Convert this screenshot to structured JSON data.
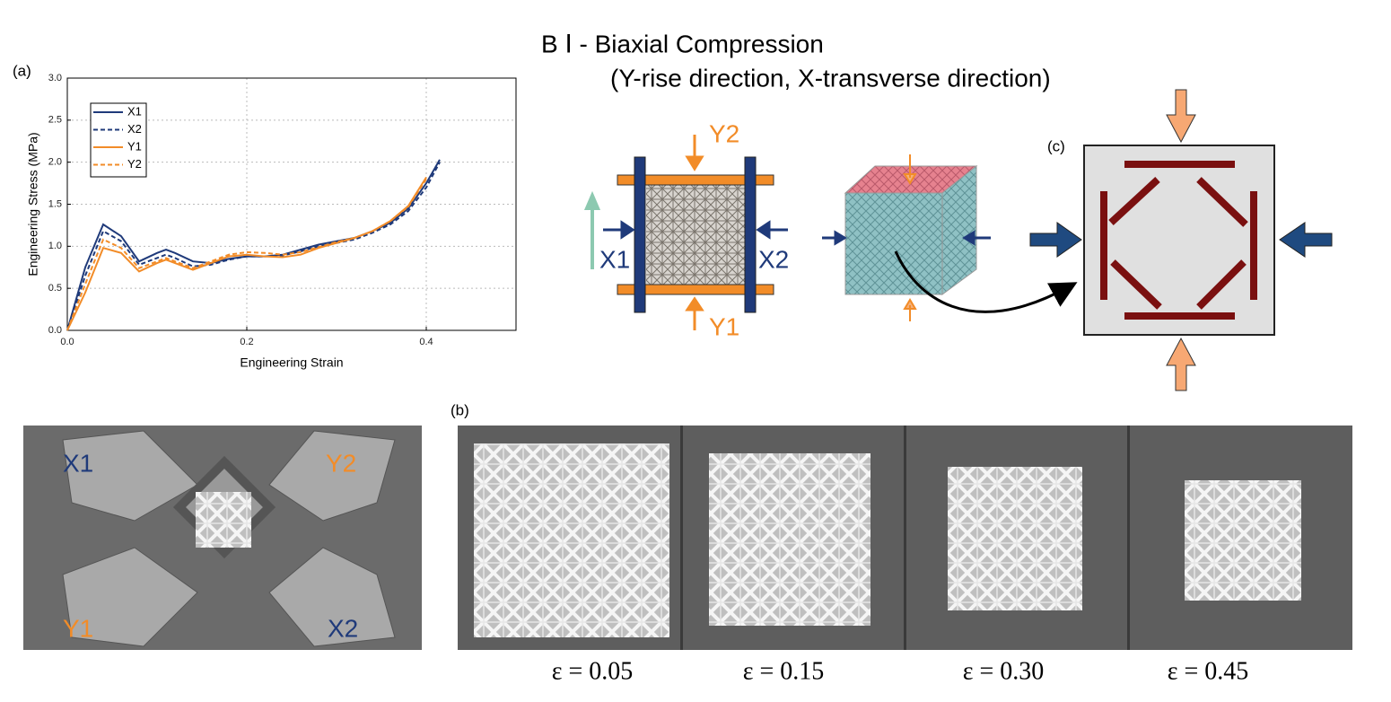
{
  "title": "B Ⅰ - Biaxial Compression",
  "subtitle": "(Y-rise direction, X-transverse direction)",
  "panel_labels": [
    "(a)",
    "(b)",
    "(c)"
  ],
  "diagram_labels": {
    "top": "Y2",
    "bottom": "Y1",
    "left": "X1",
    "right": "X2"
  },
  "photo_labels": {
    "top_left": "X1",
    "top_right": "Y2",
    "bottom_left": "Y1",
    "bottom_right": "X2"
  },
  "strain_labels": [
    "ε = 0.05",
    "ε = 0.15",
    "ε = 0.30",
    "ε = 0.45"
  ],
  "chart_data": {
    "type": "line",
    "x_label": "Engineering Strain",
    "y_label": "Engineering Stress (MPa)",
    "x": [
      0,
      0.02,
      0.04,
      0.06,
      0.08,
      0.1,
      0.11,
      0.12,
      0.14,
      0.16,
      0.18,
      0.2,
      0.22,
      0.24,
      0.26,
      0.28,
      0.3,
      0.32,
      0.34,
      0.36,
      0.38,
      0.4,
      0.415
    ],
    "series": [
      {
        "name": "X1",
        "color": "#1f3a7a",
        "linestyle": "solid",
        "values": [
          0,
          0.75,
          1.26,
          1.12,
          0.82,
          0.92,
          0.96,
          0.92,
          0.82,
          0.8,
          0.85,
          0.88,
          0.88,
          0.9,
          0.96,
          1.02,
          1.06,
          1.1,
          1.18,
          1.28,
          1.45,
          1.75,
          2.03
        ]
      },
      {
        "name": "X2",
        "color": "#1f3a7a",
        "linestyle": "dashed",
        "values": [
          0,
          0.65,
          1.18,
          1.06,
          0.78,
          0.86,
          0.9,
          0.86,
          0.76,
          0.78,
          0.84,
          0.88,
          0.88,
          0.89,
          0.94,
          1.0,
          1.04,
          1.08,
          1.16,
          1.26,
          1.42,
          1.7,
          2.0
        ]
      },
      {
        "name": "Y1",
        "color": "#f28c28",
        "linestyle": "solid",
        "values": [
          0,
          0.45,
          0.98,
          0.92,
          0.7,
          0.8,
          0.84,
          0.8,
          0.72,
          0.8,
          0.88,
          0.9,
          0.88,
          0.87,
          0.9,
          0.98,
          1.04,
          1.1,
          1.18,
          1.3,
          1.48,
          1.82,
          null
        ]
      },
      {
        "name": "Y2",
        "color": "#f28c28",
        "linestyle": "dashed",
        "values": [
          0,
          0.55,
          1.08,
          0.98,
          0.74,
          0.82,
          0.86,
          0.82,
          0.74,
          0.82,
          0.9,
          0.93,
          0.92,
          0.9,
          0.93,
          0.99,
          1.05,
          1.1,
          1.18,
          1.3,
          1.47,
          1.8,
          null
        ]
      }
    ],
    "xlim": [
      0,
      0.5
    ],
    "xticks": [
      {
        "value": 0,
        "label": "0.0"
      },
      0.2,
      0.4
    ],
    "ylim": [
      0,
      3
    ],
    "yticks": [
      {
        "value": 0,
        "label": "0.0"
      },
      0.5,
      {
        "value": 1,
        "label": "1.0"
      },
      1.5,
      {
        "value": 2,
        "label": "2.0"
      },
      2.5,
      {
        "value": 3,
        "label": "3.0"
      }
    ],
    "grid": true,
    "legend": "upper left"
  }
}
